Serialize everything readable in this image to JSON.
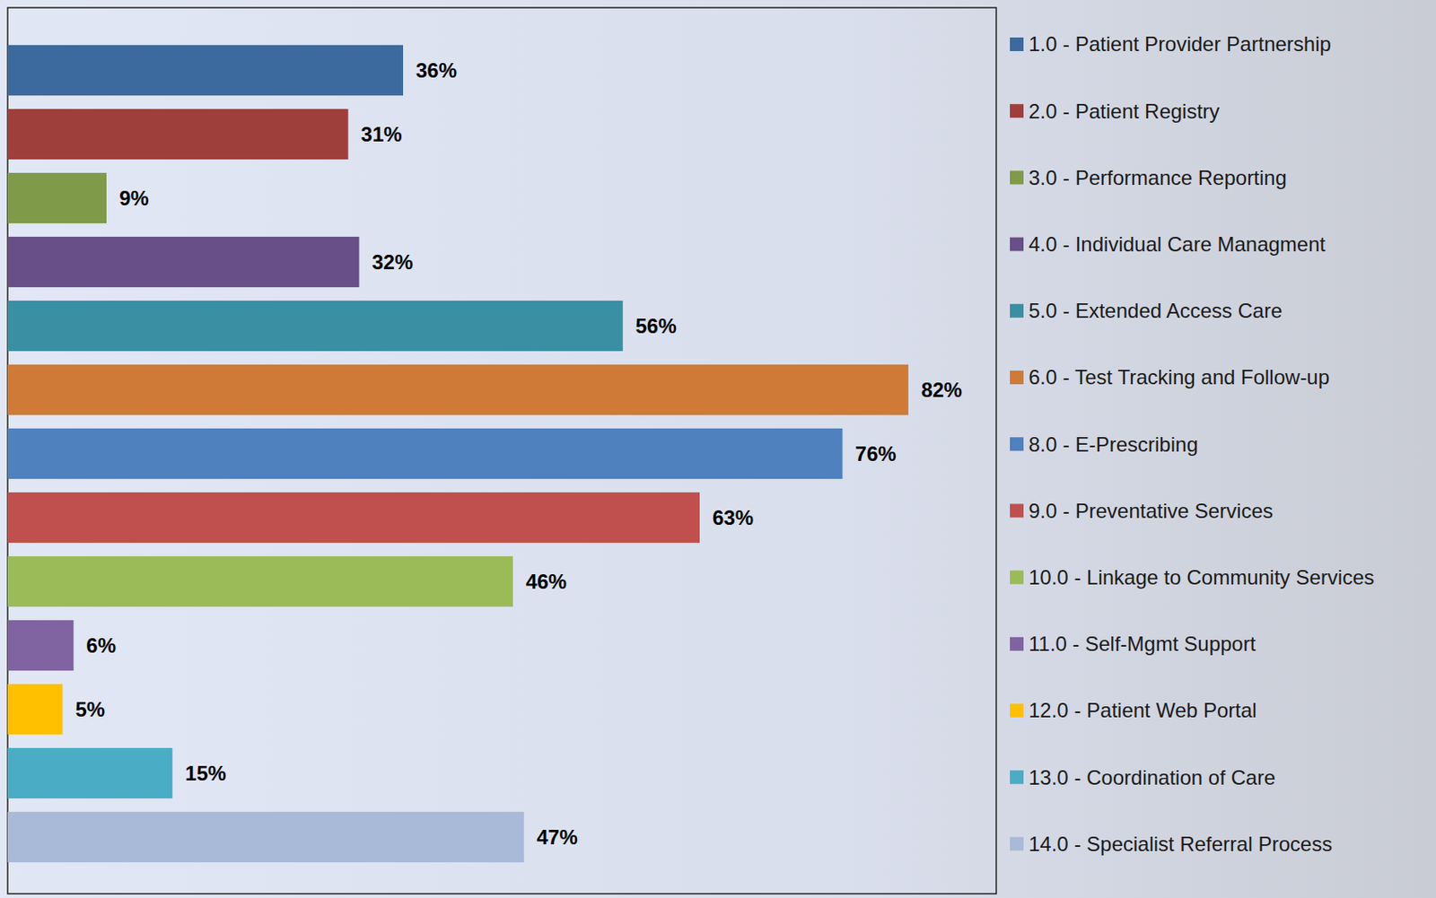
{
  "chart_data": {
    "type": "bar",
    "orientation": "horizontal",
    "categories": [
      "1.0 - Patient Provider Partnership",
      "2.0 - Patient Registry",
      "3.0 - Performance Reporting",
      "4.0 - Individual Care Managment",
      "5.0 - Extended Access Care",
      "6.0 - Test Tracking and Follow-up",
      "8.0 - E-Prescribing",
      "9.0 - Preventative Services",
      "10.0 - Linkage to Community Services",
      "11.0 - Self-Mgmt Support",
      "12.0 - Patient Web Portal",
      "13.0 - Coordination of Care",
      "14.0 - Specialist Referral Process"
    ],
    "values": [
      36,
      31,
      9,
      32,
      56,
      82,
      76,
      63,
      46,
      6,
      5,
      15,
      47
    ],
    "value_labels": [
      "36%",
      "31%",
      "9%",
      "32%",
      "56%",
      "82%",
      "76%",
      "63%",
      "46%",
      "6%",
      "5%",
      "15%",
      "47%"
    ],
    "colors": [
      "#3d6a9e",
      "#9e3f3c",
      "#7f9a48",
      "#684f87",
      "#3a8fa3",
      "#cf7b37",
      "#4e81bd",
      "#c0504d",
      "#9bbb59",
      "#8064a2",
      "#ffc000",
      "#4bacc6",
      "#a9b9d8"
    ],
    "xlim": [
      0,
      90
    ],
    "data_labels": true,
    "tick_labels": false,
    "legend": "right"
  }
}
